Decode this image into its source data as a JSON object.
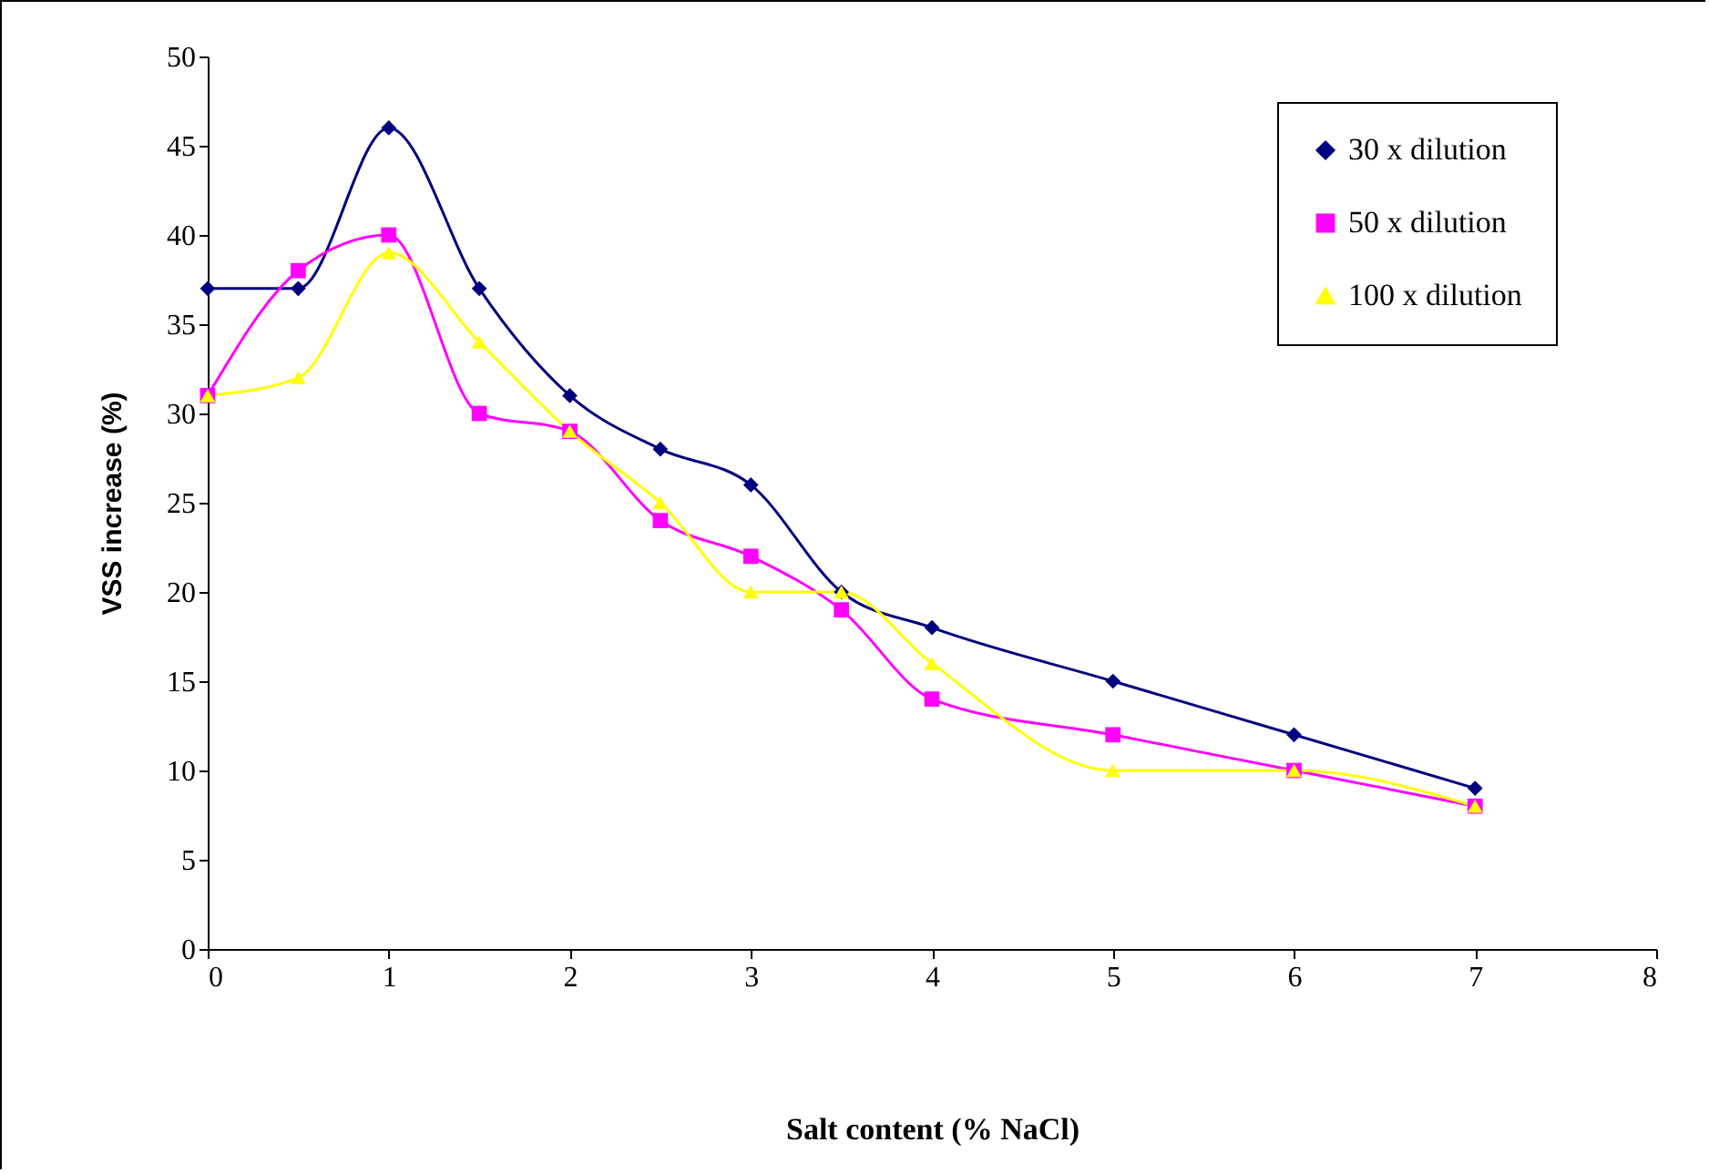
{
  "chart_data": {
    "type": "line",
    "xlabel": "Salt content (%  NaCl)",
    "ylabel": "VSS increase (%)",
    "xlim": [
      0,
      8
    ],
    "xticks": [
      0,
      1,
      2,
      3,
      4,
      5,
      6,
      7,
      8
    ],
    "ylim": [
      0,
      50
    ],
    "yticks": [
      0,
      5,
      10,
      15,
      20,
      25,
      30,
      35,
      40,
      45,
      50
    ],
    "legend": "top right",
    "line_style": "solid",
    "series": [
      {
        "name": "30 x dilution",
        "color": "#000080",
        "marker": "diamond",
        "x": [
          0,
          0.5,
          1,
          1.5,
          2,
          2.5,
          3,
          3.5,
          4,
          5,
          6,
          7
        ],
        "values": [
          37,
          37,
          46,
          37,
          31,
          28,
          26,
          20,
          18,
          15,
          12,
          9
        ]
      },
      {
        "name": "50 x dilution",
        "color": "#ff00ff",
        "marker": "square",
        "x": [
          0,
          0.5,
          1,
          1.5,
          2,
          2.5,
          3,
          3.5,
          4,
          5,
          6,
          7
        ],
        "values": [
          31,
          38,
          40,
          30,
          29,
          24,
          22,
          19,
          14,
          12,
          10,
          8
        ]
      },
      {
        "name": "100 x dilution",
        "color": "#ffff00",
        "marker": "triangle",
        "x": [
          0,
          0.5,
          1,
          1.5,
          2,
          2.5,
          3,
          3.5,
          4,
          5,
          6,
          7
        ],
        "values": [
          31,
          32,
          39,
          34,
          29,
          25,
          20,
          20,
          16,
          10,
          10,
          8
        ]
      }
    ]
  }
}
